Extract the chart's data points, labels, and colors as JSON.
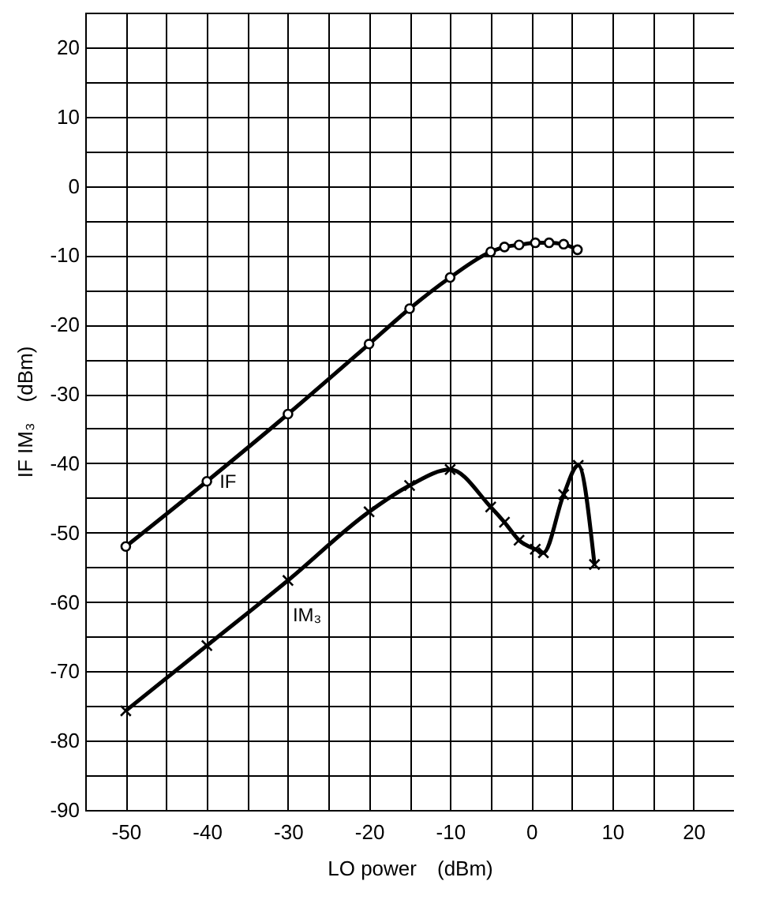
{
  "chart_data": {
    "type": "line",
    "xlabel": "LO power　(dBm)",
    "ylabel": "IF IM₃　(dBm)",
    "xlim": [
      -55,
      25
    ],
    "ylim": [
      -90,
      25
    ],
    "xticks": [
      {
        "value": -55,
        "label": null
      },
      -50,
      {
        "value": -45,
        "label": null
      },
      -40,
      {
        "value": -35,
        "label": null
      },
      -30,
      {
        "value": -25,
        "label": null
      },
      -20,
      {
        "value": -15,
        "label": null
      },
      -10,
      {
        "value": -5,
        "label": null
      },
      0,
      {
        "value": 5,
        "label": null
      },
      10,
      {
        "value": 15,
        "label": null
      },
      20
    ],
    "yticks": [
      -90,
      {
        "value": -85,
        "label": null
      },
      -80,
      {
        "value": -75,
        "label": null
      },
      -70,
      {
        "value": -65,
        "label": null
      },
      -60,
      {
        "value": -55,
        "label": null
      },
      -50,
      {
        "value": -45,
        "label": null
      },
      -40,
      {
        "value": -35,
        "label": null
      },
      -30,
      {
        "value": -25,
        "label": null
      },
      -20,
      {
        "value": -15,
        "label": null
      },
      -10,
      {
        "value": -5,
        "label": null
      },
      0,
      {
        "value": 5,
        "label": null
      },
      10,
      {
        "value": 15,
        "label": null
      },
      20
    ],
    "grid": true,
    "series": [
      {
        "name": "IF",
        "color": "#000000",
        "marker": "circle",
        "x": [
          -50,
          -40,
          -30,
          -20,
          -15,
          -10,
          -5,
          -3.3,
          -1.5,
          0.5,
          2.2,
          4,
          5.7
        ],
        "values": [
          -52,
          -42.6,
          -32.9,
          -22.8,
          -17.7,
          -13.2,
          -9.5,
          -8.8,
          -8.5,
          -8.2,
          -8.2,
          -8.4,
          -9.2
        ]
      },
      {
        "name": "IM₃",
        "color": "#000000",
        "marker": "cross",
        "x": [
          -50,
          -40,
          -30,
          -20,
          -15,
          -10,
          -5,
          -3.3,
          -1.5,
          0.5,
          1.5,
          4,
          5.8,
          7.8
        ],
        "values": [
          -75.7,
          -66.3,
          -56.9,
          -47,
          -43.2,
          -40.9,
          -46.3,
          -48.5,
          -51.1,
          -52.4,
          -52.9,
          -44.5,
          -40.3,
          -54.6
        ]
      }
    ]
  }
}
